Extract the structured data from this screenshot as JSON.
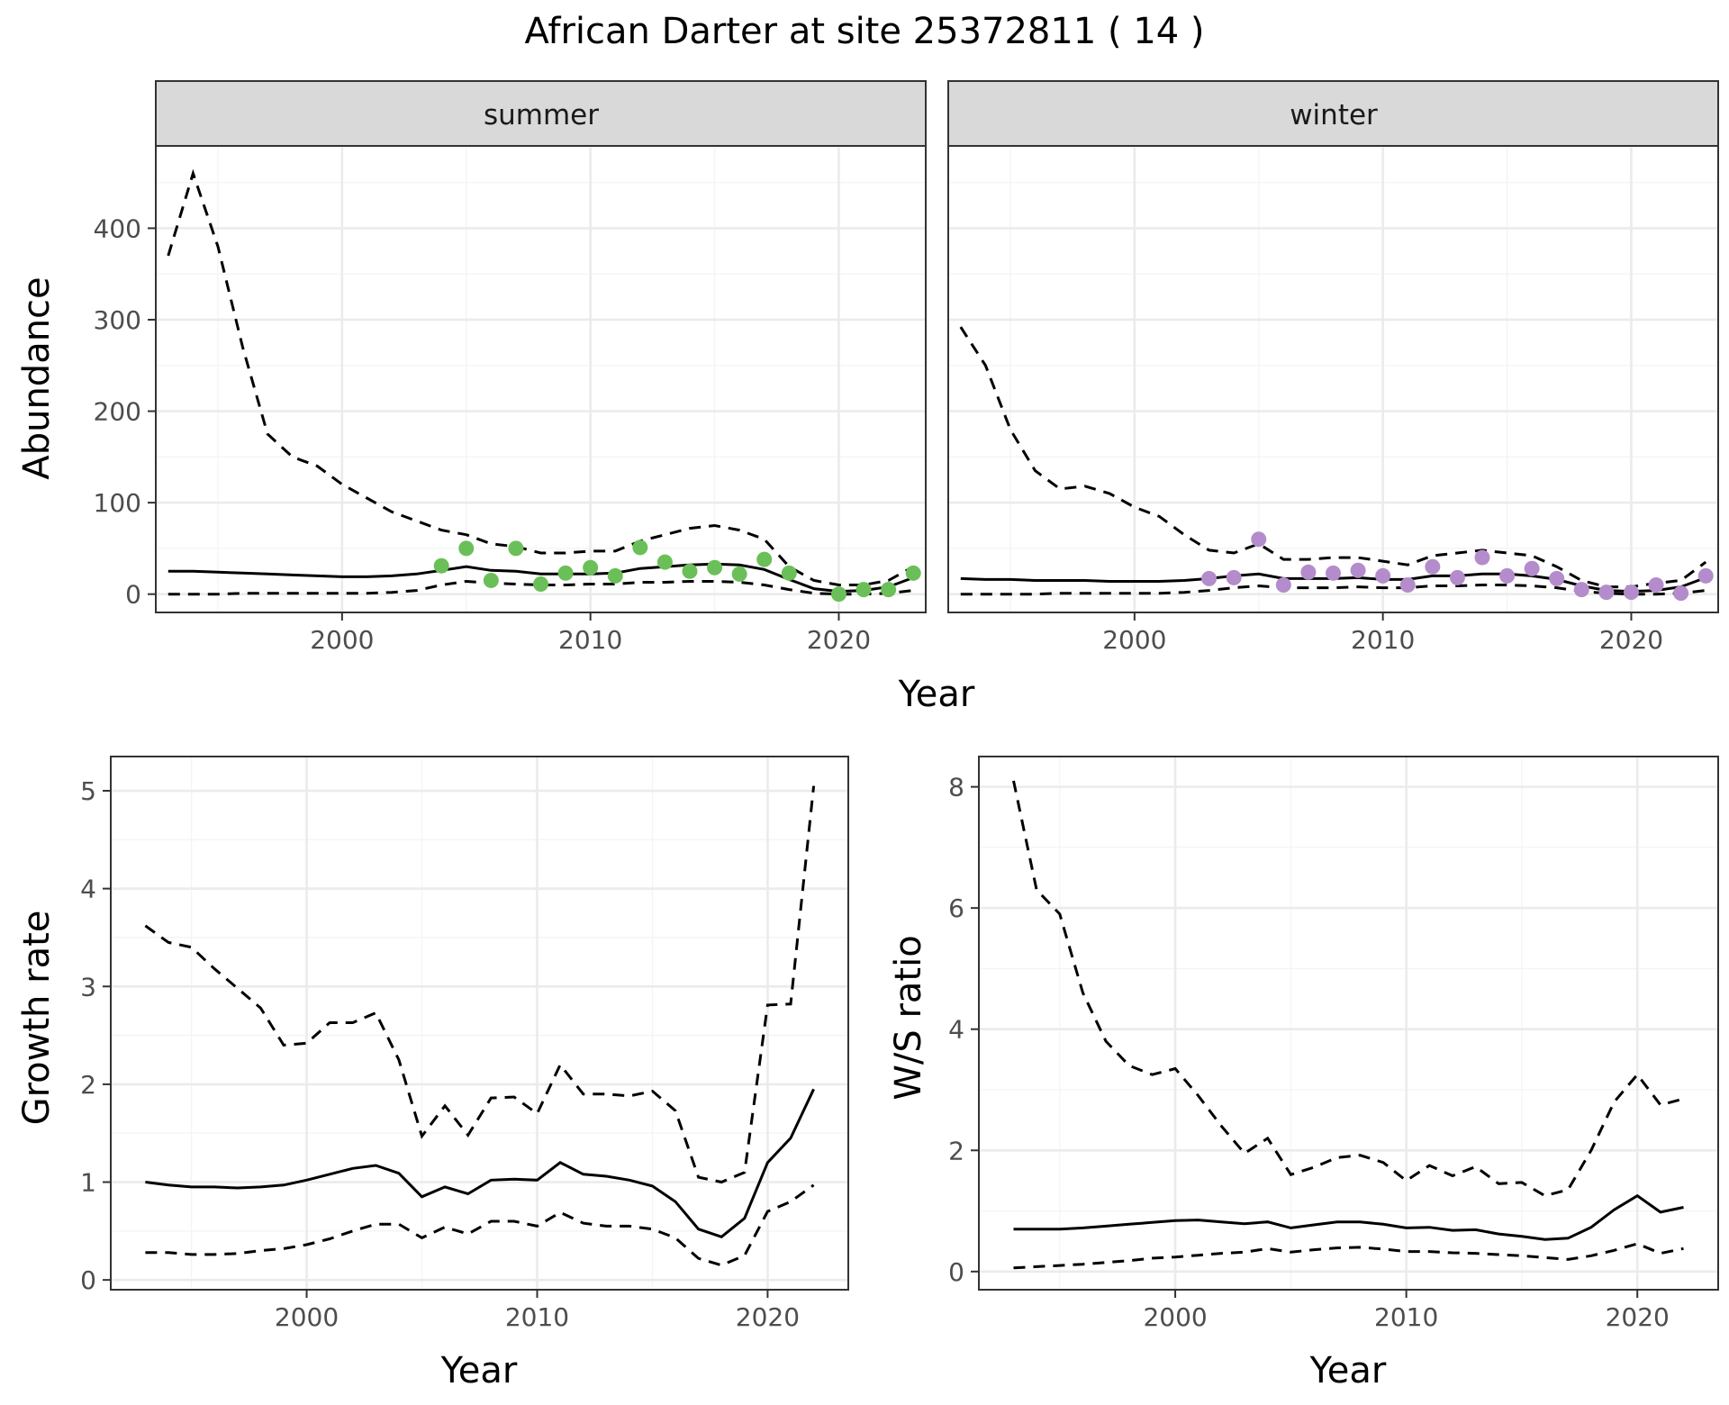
{
  "title": "African Darter at site 25372811 ( 14 )",
  "colors": {
    "summer_points": "#6BBF59",
    "winter_points": "#B48CCB"
  },
  "chart_data": [
    {
      "id": "abundance_summer",
      "type": "line",
      "facet": "summer",
      "xlabel": "Year",
      "ylabel": "Abundance",
      "xlim": [
        1992.5,
        2023.5
      ],
      "ylim": [
        -20,
        490
      ],
      "xticks": [
        2000,
        2010,
        2020
      ],
      "yticks": [
        0,
        100,
        200,
        300,
        400
      ],
      "x": [
        1993,
        1994,
        1995,
        1996,
        1997,
        1998,
        1999,
        2000,
        2001,
        2002,
        2003,
        2004,
        2005,
        2006,
        2007,
        2008,
        2009,
        2010,
        2011,
        2012,
        2013,
        2014,
        2015,
        2016,
        2017,
        2018,
        2019,
        2020,
        2021,
        2022,
        2023
      ],
      "series": [
        {
          "role": "mean",
          "values": [
            25,
            25,
            24,
            23,
            22,
            21,
            20,
            19,
            19,
            20,
            22,
            26,
            30,
            26,
            25,
            22,
            22,
            22,
            23,
            28,
            30,
            32,
            33,
            32,
            27,
            16,
            6,
            3,
            4,
            8,
            18
          ]
        },
        {
          "role": "upper",
          "values": [
            370,
            460,
            380,
            270,
            175,
            150,
            140,
            120,
            105,
            90,
            80,
            70,
            65,
            55,
            52,
            45,
            45,
            47,
            47,
            58,
            65,
            72,
            75,
            70,
            60,
            30,
            15,
            10,
            10,
            15,
            30
          ]
        },
        {
          "role": "lower",
          "values": [
            0,
            0,
            0,
            1,
            1,
            1,
            1,
            1,
            1,
            2,
            4,
            10,
            14,
            12,
            11,
            10,
            10,
            11,
            11,
            13,
            13,
            14,
            14,
            13,
            10,
            5,
            1,
            0,
            0,
            1,
            4
          ]
        }
      ],
      "points": {
        "x": [
          2004,
          2005,
          2006,
          2007,
          2008,
          2009,
          2010,
          2011,
          2012,
          2013,
          2014,
          2015,
          2016,
          2017,
          2018,
          2020,
          2021,
          2022,
          2023
        ],
        "y": [
          31,
          50,
          15,
          50,
          11,
          23,
          29,
          20,
          51,
          35,
          25,
          29,
          22,
          38,
          23,
          0,
          5,
          5,
          23
        ]
      }
    },
    {
      "id": "abundance_winter",
      "type": "line",
      "facet": "winter",
      "xlabel": "Year",
      "ylabel": "",
      "xlim": [
        1992.5,
        2023.5
      ],
      "ylim": [
        -20,
        490
      ],
      "xticks": [
        2000,
        2010,
        2020
      ],
      "yticks": [],
      "x": [
        1993,
        1994,
        1995,
        1996,
        1997,
        1998,
        1999,
        2000,
        2001,
        2002,
        2003,
        2004,
        2005,
        2006,
        2007,
        2008,
        2009,
        2010,
        2011,
        2012,
        2013,
        2014,
        2015,
        2016,
        2017,
        2018,
        2019,
        2020,
        2021,
        2022,
        2023
      ],
      "series": [
        {
          "role": "mean",
          "values": [
            17,
            16,
            16,
            15,
            15,
            15,
            14,
            14,
            14,
            15,
            17,
            20,
            22,
            17,
            17,
            17,
            18,
            16,
            16,
            20,
            20,
            22,
            22,
            20,
            16,
            9,
            4,
            3,
            4,
            8,
            18
          ]
        },
        {
          "role": "upper",
          "values": [
            292,
            250,
            180,
            135,
            115,
            118,
            110,
            95,
            85,
            65,
            48,
            45,
            55,
            38,
            38,
            40,
            40,
            36,
            32,
            42,
            45,
            48,
            45,
            42,
            30,
            15,
            8,
            8,
            12,
            15,
            35
          ]
        },
        {
          "role": "lower",
          "values": [
            0,
            0,
            0,
            0,
            1,
            1,
            1,
            1,
            1,
            2,
            4,
            7,
            9,
            7,
            7,
            7,
            8,
            7,
            7,
            9,
            9,
            10,
            10,
            9,
            7,
            3,
            1,
            0,
            0,
            1,
            4
          ]
        }
      ],
      "points": {
        "x": [
          2003,
          2004,
          2005,
          2006,
          2007,
          2008,
          2009,
          2010,
          2011,
          2012,
          2013,
          2014,
          2015,
          2016,
          2017,
          2018,
          2019,
          2020,
          2021,
          2022,
          2023
        ],
        "y": [
          17,
          18,
          60,
          10,
          24,
          23,
          26,
          20,
          10,
          30,
          18,
          40,
          20,
          28,
          17,
          5,
          2,
          2,
          10,
          1,
          20
        ]
      }
    },
    {
      "id": "growth_rate",
      "type": "line",
      "xlabel": "Year",
      "ylabel": "Growth rate",
      "xlim": [
        1991.5,
        2023.5
      ],
      "ylim": [
        -0.1,
        5.35
      ],
      "xticks": [
        2000,
        2010,
        2020
      ],
      "yticks": [
        0,
        1,
        2,
        3,
        4,
        5
      ],
      "x": [
        1993,
        1994,
        1995,
        1996,
        1997,
        1998,
        1999,
        2000,
        2001,
        2002,
        2003,
        2004,
        2005,
        2006,
        2007,
        2008,
        2009,
        2010,
        2011,
        2012,
        2013,
        2014,
        2015,
        2016,
        2017,
        2018,
        2019,
        2020,
        2021,
        2022
      ],
      "series": [
        {
          "role": "mean",
          "values": [
            1.0,
            0.97,
            0.95,
            0.95,
            0.94,
            0.95,
            0.97,
            1.02,
            1.08,
            1.14,
            1.17,
            1.09,
            0.85,
            0.95,
            0.88,
            1.02,
            1.03,
            1.02,
            1.2,
            1.08,
            1.06,
            1.02,
            0.96,
            0.8,
            0.52,
            0.44,
            0.63,
            1.2,
            1.45,
            1.95
          ]
        },
        {
          "role": "upper",
          "values": [
            3.62,
            3.45,
            3.4,
            3.18,
            2.98,
            2.78,
            2.4,
            2.42,
            2.63,
            2.63,
            2.73,
            2.25,
            1.47,
            1.78,
            1.48,
            1.86,
            1.87,
            1.7,
            2.2,
            1.9,
            1.9,
            1.88,
            1.93,
            1.73,
            1.05,
            1.0,
            1.1,
            2.81,
            2.82,
            5.05
          ]
        },
        {
          "role": "lower",
          "values": [
            0.28,
            0.28,
            0.26,
            0.26,
            0.27,
            0.3,
            0.32,
            0.36,
            0.42,
            0.5,
            0.57,
            0.57,
            0.43,
            0.54,
            0.47,
            0.6,
            0.6,
            0.55,
            0.69,
            0.58,
            0.55,
            0.55,
            0.52,
            0.43,
            0.22,
            0.15,
            0.25,
            0.7,
            0.8,
            0.97
          ]
        }
      ]
    },
    {
      "id": "ws_ratio",
      "type": "line",
      "xlabel": "Year",
      "ylabel": "W/S ratio",
      "xlim": [
        1991.5,
        2023.5
      ],
      "ylim": [
        -0.3,
        8.5
      ],
      "xticks": [
        2000,
        2010,
        2020
      ],
      "yticks": [
        0,
        2,
        4,
        6,
        8
      ],
      "x": [
        1993,
        1994,
        1995,
        1996,
        1997,
        1998,
        1999,
        2000,
        2001,
        2002,
        2003,
        2004,
        2005,
        2006,
        2007,
        2008,
        2009,
        2010,
        2011,
        2012,
        2013,
        2014,
        2015,
        2016,
        2017,
        2018,
        2019,
        2020,
        2021,
        2022
      ],
      "series": [
        {
          "role": "mean",
          "values": [
            0.7,
            0.7,
            0.7,
            0.72,
            0.75,
            0.78,
            0.81,
            0.84,
            0.85,
            0.82,
            0.79,
            0.82,
            0.72,
            0.77,
            0.82,
            0.82,
            0.78,
            0.72,
            0.73,
            0.68,
            0.69,
            0.62,
            0.58,
            0.53,
            0.55,
            0.73,
            1.02,
            1.25,
            0.98,
            1.06
          ]
        },
        {
          "role": "upper",
          "values": [
            8.1,
            6.3,
            5.9,
            4.6,
            3.8,
            3.4,
            3.25,
            3.35,
            2.9,
            2.4,
            1.95,
            2.2,
            1.6,
            1.72,
            1.88,
            1.92,
            1.8,
            1.5,
            1.75,
            1.58,
            1.73,
            1.45,
            1.47,
            1.25,
            1.35,
            2.0,
            2.8,
            3.25,
            2.75,
            2.85
          ]
        },
        {
          "role": "lower",
          "values": [
            0.06,
            0.08,
            0.1,
            0.12,
            0.15,
            0.18,
            0.22,
            0.24,
            0.27,
            0.3,
            0.32,
            0.38,
            0.32,
            0.36,
            0.39,
            0.4,
            0.37,
            0.33,
            0.33,
            0.31,
            0.3,
            0.28,
            0.26,
            0.23,
            0.2,
            0.26,
            0.35,
            0.46,
            0.3,
            0.38
          ]
        }
      ]
    }
  ]
}
